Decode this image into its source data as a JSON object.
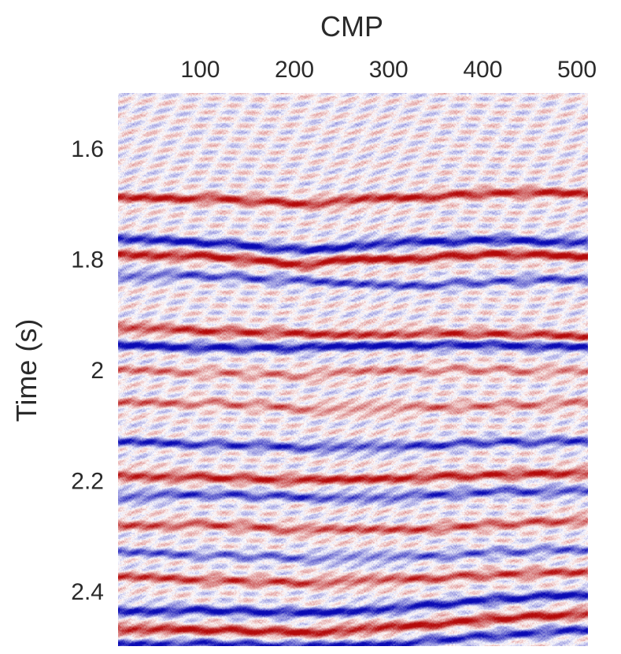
{
  "chart_data": {
    "type": "heatmap",
    "title": "",
    "xlabel": "CMP",
    "ylabel": "Time (s)",
    "x_axis_position": "top",
    "xlim": [
      1,
      500
    ],
    "ylim": [
      1.5,
      2.5
    ],
    "y_direction": "down",
    "x_ticks": [
      100,
      200,
      300,
      400,
      500
    ],
    "x_tick_labels": [
      "100",
      "200",
      "300",
      "400",
      "500"
    ],
    "y_ticks": [
      1.6,
      1.8,
      2.0,
      2.2,
      2.4
    ],
    "y_tick_labels": [
      "1.6",
      "1.8",
      "2",
      "2.2",
      "2.4"
    ],
    "colormap": [
      "#0a0ab4",
      "#ffffff",
      "#b40a0a"
    ],
    "grid": false,
    "legend": "none",
    "horizons": [
      {
        "cmp": [
          1,
          100,
          200,
          280,
          300,
          400,
          500
        ],
        "time": [
          1.69,
          1.69,
          1.7,
          1.69,
          1.69,
          1.68,
          1.68
        ],
        "amplitude": 0.9
      },
      {
        "cmp": [
          1,
          100,
          200,
          250,
          300,
          400,
          500
        ],
        "time": [
          1.765,
          1.77,
          1.785,
          1.775,
          1.77,
          1.765,
          1.77
        ],
        "amplitude": -1.0
      },
      {
        "cmp": [
          1,
          100,
          200,
          250,
          300,
          400,
          500
        ],
        "time": [
          1.79,
          1.795,
          1.81,
          1.8,
          1.8,
          1.79,
          1.795
        ],
        "amplitude": 1.0
      },
      {
        "cmp": [
          1,
          100,
          200,
          300,
          400,
          500
        ],
        "time": [
          1.83,
          1.83,
          1.84,
          1.85,
          1.84,
          1.835
        ],
        "amplitude": -0.7
      },
      {
        "cmp": [
          1,
          100,
          200,
          300,
          400,
          500
        ],
        "time": [
          1.925,
          1.93,
          1.935,
          1.935,
          1.935,
          1.94
        ],
        "amplitude": 0.85
      },
      {
        "cmp": [
          1,
          100,
          200,
          300,
          400,
          500
        ],
        "time": [
          1.955,
          1.96,
          1.96,
          1.955,
          1.955,
          1.96
        ],
        "amplitude": -1.0
      },
      {
        "cmp": [
          1,
          100,
          200,
          300,
          400,
          500
        ],
        "time": [
          2.0,
          2.005,
          2.01,
          2.0,
          2.0,
          2.005
        ],
        "amplitude": 0.5
      },
      {
        "cmp": [
          1,
          100,
          200,
          300,
          400,
          500
        ],
        "time": [
          2.06,
          2.06,
          2.07,
          2.07,
          2.065,
          2.06
        ],
        "amplitude": 0.55
      },
      {
        "cmp": [
          1,
          100,
          200,
          300,
          400,
          500
        ],
        "time": [
          2.13,
          2.135,
          2.14,
          2.14,
          2.13,
          2.13
        ],
        "amplitude": -0.8
      },
      {
        "cmp": [
          1,
          100,
          200,
          300,
          400,
          500
        ],
        "time": [
          2.19,
          2.195,
          2.2,
          2.195,
          2.19,
          2.185
        ],
        "amplitude": 0.9
      },
      {
        "cmp": [
          1,
          100,
          200,
          300,
          400,
          500
        ],
        "time": [
          2.23,
          2.225,
          2.23,
          2.23,
          2.22,
          2.22
        ],
        "amplitude": -0.75
      },
      {
        "cmp": [
          1,
          100,
          200,
          300,
          400,
          500
        ],
        "time": [
          2.28,
          2.28,
          2.29,
          2.29,
          2.28,
          2.27
        ],
        "amplitude": 0.7
      },
      {
        "cmp": [
          1,
          100,
          200,
          300,
          400,
          500
        ],
        "time": [
          2.33,
          2.335,
          2.34,
          2.34,
          2.33,
          2.325
        ],
        "amplitude": -0.6
      },
      {
        "cmp": [
          1,
          100,
          200,
          300,
          400,
          500
        ],
        "time": [
          2.375,
          2.38,
          2.385,
          2.38,
          2.37,
          2.365
        ],
        "amplitude": 0.75
      },
      {
        "cmp": [
          1,
          100,
          200,
          300,
          400,
          500
        ],
        "time": [
          2.435,
          2.435,
          2.44,
          2.43,
          2.415,
          2.405
        ],
        "amplitude": -1.0
      },
      {
        "cmp": [
          1,
          100,
          200,
          300,
          400,
          500
        ],
        "time": [
          2.47,
          2.47,
          2.475,
          2.465,
          2.45,
          2.44
        ],
        "amplitude": 1.0
      },
      {
        "cmp": [
          1,
          100,
          200,
          300,
          400,
          500
        ],
        "time": [
          2.495,
          2.495,
          2.5,
          2.495,
          2.48,
          2.47
        ],
        "amplitude": -0.9
      }
    ]
  }
}
